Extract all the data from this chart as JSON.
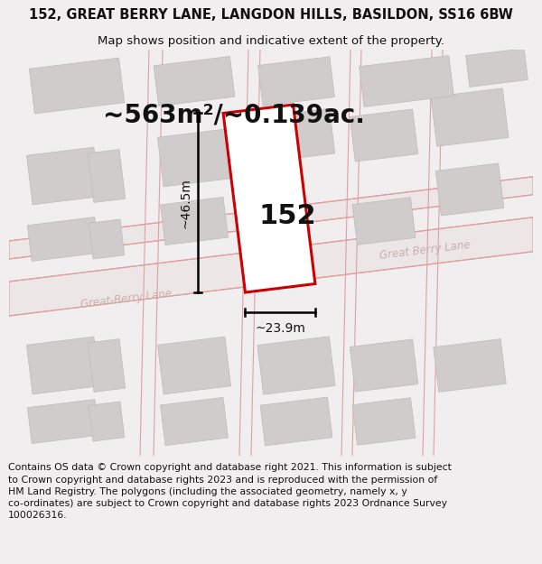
{
  "title": "152, GREAT BERRY LANE, LANGDON HILLS, BASILDON, SS16 6BW",
  "subtitle": "Map shows position and indicative extent of the property.",
  "area_text": "~563m²/~0.139ac.",
  "number_label": "152",
  "dim_height": "~46.5m",
  "dim_width": "~23.9m",
  "road_label1": "Great-Berry Lane",
  "road_label2": "Great Berry Lane",
  "footer": "Contains OS data © Crown copyright and database right 2021. This information is subject\nto Crown copyright and database rights 2023 and is reproduced with the permission of\nHM Land Registry. The polygons (including the associated geometry, namely x, y\nco-ordinates) are subject to Crown copyright and database rights 2023 Ordnance Survey\n100026316.",
  "bg_color": "#f0eeee",
  "map_bg": "#f0eeee",
  "plot_edge_color": "#cc0000",
  "building_color": "#d0cccc",
  "road_line_color": "#e0a0a0",
  "title_fontsize": 10.5,
  "subtitle_fontsize": 9.5,
  "area_fontsize": 20,
  "number_fontsize": 22,
  "dim_fontsize": 10,
  "road_fontsize": 8.5,
  "footer_fontsize": 7.8
}
